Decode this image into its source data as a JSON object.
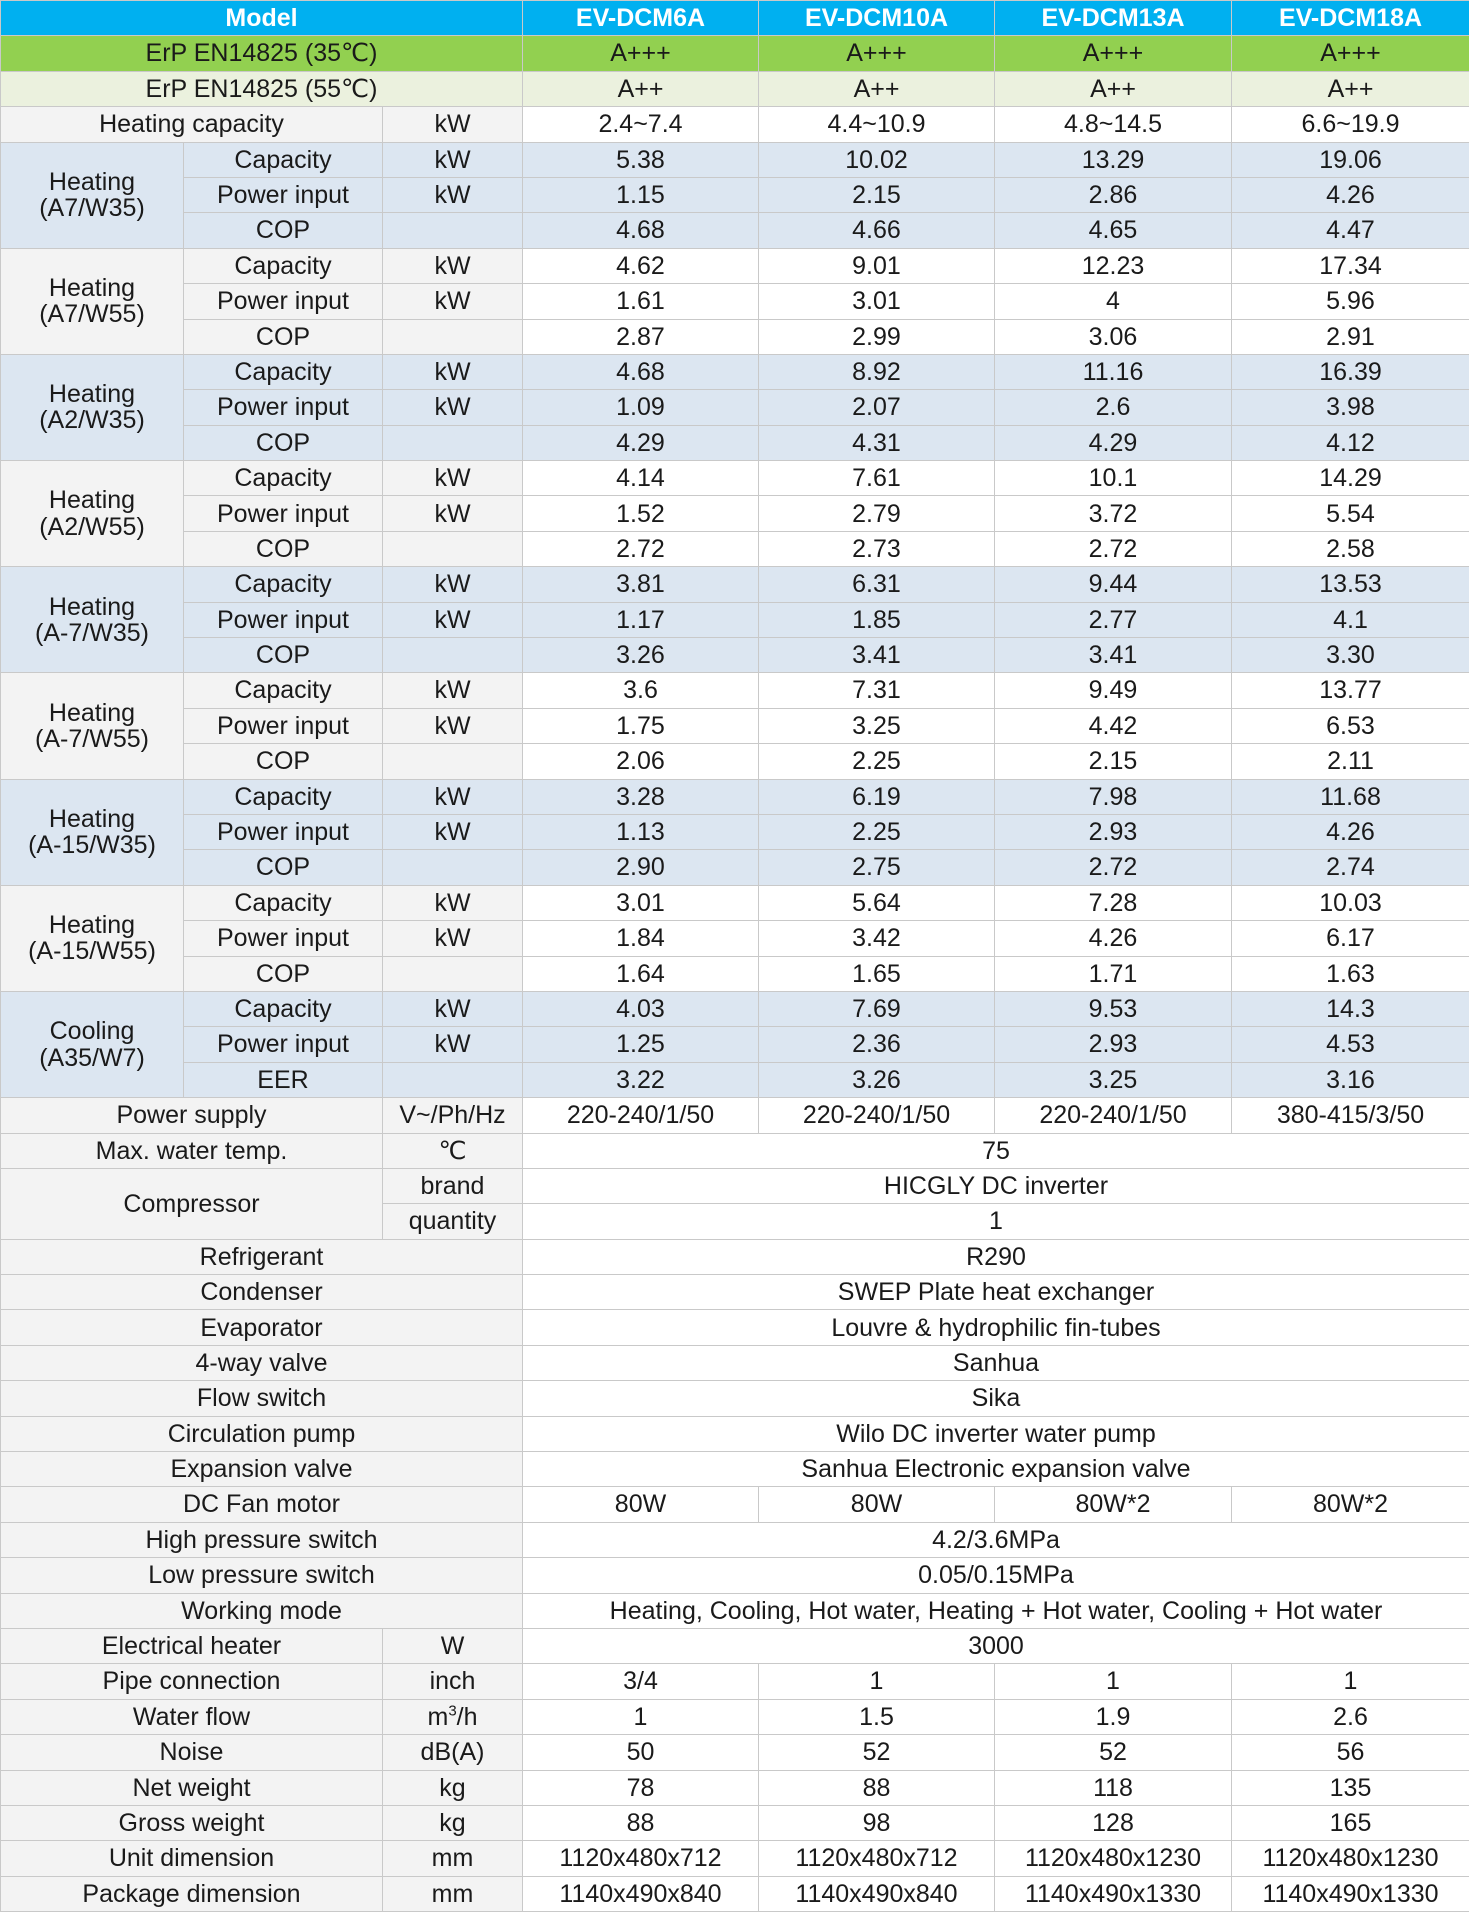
{
  "header": {
    "label": "Model",
    "models": [
      "EV-DCM6A",
      "EV-DCM10A",
      "EV-DCM13A",
      "EV-DCM18A"
    ]
  },
  "erp": [
    {
      "label": "ErP EN14825 (35℃)",
      "values": [
        "A+++",
        "A+++",
        "A+++",
        "A+++"
      ]
    },
    {
      "label": "ErP EN14825 (55℃)",
      "values": [
        "A++",
        "A++",
        "A++",
        "A++"
      ]
    }
  ],
  "heating_capacity": {
    "label": "Heating capacity",
    "unit": "kW",
    "values": [
      "2.4~7.4",
      "4.4~10.9",
      "4.8~14.5",
      "6.6~19.9"
    ]
  },
  "perf_groups": [
    {
      "title": "Heating",
      "condition": "(A7/W35)",
      "rows": [
        {
          "label": "Capacity",
          "unit": "kW",
          "values": [
            "5.38",
            "10.02",
            "13.29",
            "19.06"
          ]
        },
        {
          "label": "Power input",
          "unit": "kW",
          "values": [
            "1.15",
            "2.15",
            "2.86",
            "4.26"
          ]
        },
        {
          "label": "COP",
          "unit": "",
          "values": [
            "4.68",
            "4.66",
            "4.65",
            "4.47"
          ]
        }
      ]
    },
    {
      "title": "Heating",
      "condition": "(A7/W55)",
      "rows": [
        {
          "label": "Capacity",
          "unit": "kW",
          "values": [
            "4.62",
            "9.01",
            "12.23",
            "17.34"
          ]
        },
        {
          "label": "Power input",
          "unit": "kW",
          "values": [
            "1.61",
            "3.01",
            "4",
            "5.96"
          ]
        },
        {
          "label": "COP",
          "unit": "",
          "values": [
            "2.87",
            "2.99",
            "3.06",
            "2.91"
          ]
        }
      ]
    },
    {
      "title": "Heating",
      "condition": "(A2/W35)",
      "rows": [
        {
          "label": "Capacity",
          "unit": "kW",
          "values": [
            "4.68",
            "8.92",
            "11.16",
            "16.39"
          ]
        },
        {
          "label": "Power input",
          "unit": "kW",
          "values": [
            "1.09",
            "2.07",
            "2.6",
            "3.98"
          ]
        },
        {
          "label": "COP",
          "unit": "",
          "values": [
            "4.29",
            "4.31",
            "4.29",
            "4.12"
          ]
        }
      ]
    },
    {
      "title": "Heating",
      "condition": "(A2/W55)",
      "rows": [
        {
          "label": "Capacity",
          "unit": "kW",
          "values": [
            "4.14",
            "7.61",
            "10.1",
            "14.29"
          ]
        },
        {
          "label": "Power input",
          "unit": "kW",
          "values": [
            "1.52",
            "2.79",
            "3.72",
            "5.54"
          ]
        },
        {
          "label": "COP",
          "unit": "",
          "values": [
            "2.72",
            "2.73",
            "2.72",
            "2.58"
          ]
        }
      ]
    },
    {
      "title": "Heating",
      "condition": "(A-7/W35)",
      "rows": [
        {
          "label": "Capacity",
          "unit": "kW",
          "values": [
            "3.81",
            "6.31",
            "9.44",
            "13.53"
          ]
        },
        {
          "label": "Power input",
          "unit": "kW",
          "values": [
            "1.17",
            "1.85",
            "2.77",
            "4.1"
          ]
        },
        {
          "label": "COP",
          "unit": "",
          "values": [
            "3.26",
            "3.41",
            "3.41",
            "3.30"
          ]
        }
      ]
    },
    {
      "title": "Heating",
      "condition": "(A-7/W55)",
      "rows": [
        {
          "label": "Capacity",
          "unit": "kW",
          "values": [
            "3.6",
            "7.31",
            "9.49",
            "13.77"
          ]
        },
        {
          "label": "Power input",
          "unit": "kW",
          "values": [
            "1.75",
            "3.25",
            "4.42",
            "6.53"
          ]
        },
        {
          "label": "COP",
          "unit": "",
          "values": [
            "2.06",
            "2.25",
            "2.15",
            "2.11"
          ]
        }
      ]
    },
    {
      "title": "Heating",
      "condition": "(A-15/W35)",
      "rows": [
        {
          "label": "Capacity",
          "unit": "kW",
          "values": [
            "3.28",
            "6.19",
            "7.98",
            "11.68"
          ]
        },
        {
          "label": "Power input",
          "unit": "kW",
          "values": [
            "1.13",
            "2.25",
            "2.93",
            "4.26"
          ]
        },
        {
          "label": "COP",
          "unit": "",
          "values": [
            "2.90",
            "2.75",
            "2.72",
            "2.74"
          ]
        }
      ]
    },
    {
      "title": "Heating",
      "condition": "(A-15/W55)",
      "rows": [
        {
          "label": "Capacity",
          "unit": "kW",
          "values": [
            "3.01",
            "5.64",
            "7.28",
            "10.03"
          ]
        },
        {
          "label": "Power input",
          "unit": "kW",
          "values": [
            "1.84",
            "3.42",
            "4.26",
            "6.17"
          ]
        },
        {
          "label": "COP",
          "unit": "",
          "values": [
            "1.64",
            "1.65",
            "1.71",
            "1.63"
          ]
        }
      ]
    },
    {
      "title": "Cooling",
      "condition": "(A35/W7)",
      "rows": [
        {
          "label": "Capacity",
          "unit": "kW",
          "values": [
            "4.03",
            "7.69",
            "9.53",
            "14.3"
          ]
        },
        {
          "label": "Power input",
          "unit": "kW",
          "values": [
            "1.25",
            "2.36",
            "2.93",
            "4.53"
          ]
        },
        {
          "label": "EER",
          "unit": "",
          "values": [
            "3.22",
            "3.26",
            "3.25",
            "3.16"
          ]
        }
      ]
    }
  ],
  "power_supply": {
    "label": "Power supply",
    "unit": "V~/Ph/Hz",
    "values": [
      "220-240/1/50",
      "220-240/1/50",
      "220-240/1/50",
      "380-415/3/50"
    ]
  },
  "max_water_temp": {
    "label": "Max. water temp.",
    "unit": "℃",
    "value": "75"
  },
  "compressor": {
    "label": "Compressor",
    "brand_label": "brand",
    "brand": "HICGLY DC inverter",
    "quantity_label": "quantity",
    "quantity": "1"
  },
  "components": [
    {
      "label": "Refrigerant",
      "value": "R290"
    },
    {
      "label": "Condenser",
      "value": "SWEP Plate heat exchanger"
    },
    {
      "label": "Evaporator",
      "value": "Louvre & hydrophilic  fin-tubes"
    },
    {
      "label": "4-way valve",
      "value": "Sanhua"
    },
    {
      "label": "Flow switch",
      "value": "Sika"
    },
    {
      "label": "Circulation pump",
      "value": "Wilo DC inverter water pump"
    },
    {
      "label": "Expansion valve",
      "value": "Sanhua Electronic  expansion valve"
    }
  ],
  "dc_fan_motor": {
    "label": "DC Fan motor",
    "values": [
      "80W",
      "80W",
      "80W*2",
      "80W*2"
    ]
  },
  "switches": [
    {
      "label": "High pressure switch",
      "value": "4.2/3.6MPa"
    },
    {
      "label": "Low pressure switch",
      "value": "0.05/0.15MPa"
    },
    {
      "label": "Working mode",
      "value": "Heating, Cooling, Hot water, Heating  + Hot  water, Cooling + Hot water"
    }
  ],
  "electrical_heater": {
    "label": "Electrical  heater",
    "unit": "W",
    "value": "3000"
  },
  "pipe_connection": {
    "label": "Pipe connection",
    "unit": "inch",
    "values": [
      "3/4",
      "1",
      "1",
      "1"
    ]
  },
  "water_flow": {
    "label": "Water flow",
    "unit_base": "m",
    "unit_sup": "3",
    "unit_tail": "/h",
    "values": [
      "1",
      "1.5",
      "1.9",
      "2.6"
    ]
  },
  "bottom_rows": [
    {
      "label": "Noise",
      "unit": "dB(A)",
      "values": [
        "50",
        "52",
        "52",
        "56"
      ]
    },
    {
      "label": "Net weight",
      "unit": "kg",
      "values": [
        "78",
        "88",
        "118",
        "135"
      ]
    },
    {
      "label": "Gross weight",
      "unit": "kg",
      "values": [
        "88",
        "98",
        "128",
        "165"
      ]
    },
    {
      "label": "Unit dimension",
      "unit": "mm",
      "values": [
        "1120x480x712",
        "1120x480x712",
        "1120x480x1230",
        "1120x480x1230"
      ]
    },
    {
      "label": "Package dimension",
      "unit": "mm",
      "values": [
        "1140x490x840",
        "1140x490x840",
        "1140x490x1330",
        "1140x490x1330"
      ]
    }
  ]
}
